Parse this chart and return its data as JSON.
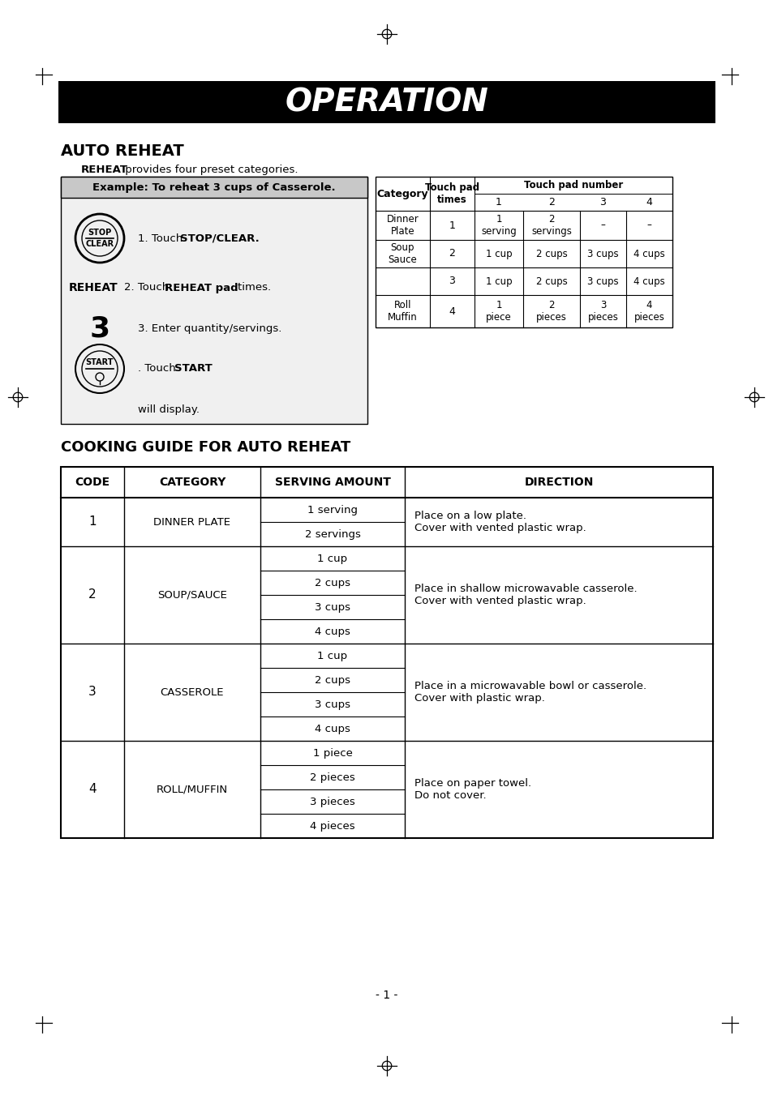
{
  "page_title": "OPERATION",
  "section1_title": "AUTO REHEAT",
  "section1_sub_bold": "REHEAT",
  "section1_sub_rest": " provides four preset categories.",
  "example_box_title": "Example: To reheat 3 cups of Casserole.",
  "step1_pre": "1. Touch ",
  "step1_bold": "STOP/CLEAR.",
  "step2_label": "REHEAT",
  "step2_pre": "2. Touch ",
  "step2_bold": "REHEAT pad",
  "step2_post": "    times.",
  "step3_num": "3",
  "step3_text": "3. Enter quantity/servings.",
  "step4_pre": ". Touch ",
  "step4_bold": "START",
  "step4_post": ".",
  "will_display": "will display.",
  "small_tbl_header_cat": "Category",
  "small_tbl_header_times": "Touch pad\ntimes",
  "small_tbl_header_num": "Touch pad number",
  "small_tbl_subheads": [
    "1",
    "2",
    "3",
    "4"
  ],
  "small_tbl_rows": [
    {
      "cat": "Dinner\nPlate",
      "times": "1",
      "n1": "1\nserving",
      "n2": "2\nservings",
      "n3": "–",
      "n4": "–"
    },
    {
      "cat": "Soup\nSauce",
      "times": "2",
      "n1": "1 cup",
      "n2": "2 cups",
      "n3": "3 cups",
      "n4": "4 cups"
    },
    {
      "cat": "",
      "times": "3",
      "n1": "1 cup",
      "n2": "2 cups",
      "n3": "3 cups",
      "n4": "4 cups"
    },
    {
      "cat": "Roll\nMuffin",
      "times": "4",
      "n1": "1\npiece",
      "n2": "2\npieces",
      "n3": "3\npieces",
      "n4": "4\npieces"
    }
  ],
  "section2_title": "COOKING GUIDE FOR AUTO REHEAT",
  "guide_headers": [
    "CODE",
    "CATEGORY",
    "SERVING AMOUNT",
    "DIRECTION"
  ],
  "guide_rows": [
    {
      "code": "1",
      "category": "DINNER PLATE",
      "servings": [
        "1 serving",
        "2 servings"
      ],
      "direction": "Place on a low plate.\nCover with vented plastic wrap."
    },
    {
      "code": "2",
      "category": "SOUP/SAUCE",
      "servings": [
        "1 cup",
        "2 cups",
        "3 cups",
        "4 cups"
      ],
      "direction": "Place in shallow microwavable casserole.\nCover with vented plastic wrap."
    },
    {
      "code": "3",
      "category": "CASSEROLE",
      "servings": [
        "1 cup",
        "2 cups",
        "3 cups",
        "4 cups"
      ],
      "direction": "Place in a microwavable bowl or casserole.\nCover with plastic wrap."
    },
    {
      "code": "4",
      "category": "ROLL/MUFFIN",
      "servings": [
        "1 piece",
        "2 pieces",
        "3 pieces",
        "4 pieces"
      ],
      "direction": "Place on paper towel.\nDo not cover."
    }
  ],
  "page_num": "- 1 -",
  "title_bg": "#000000",
  "title_fg": "#ffffff",
  "example_hdr_bg": "#c8c8c8",
  "example_body_bg": "#f0f0f0"
}
